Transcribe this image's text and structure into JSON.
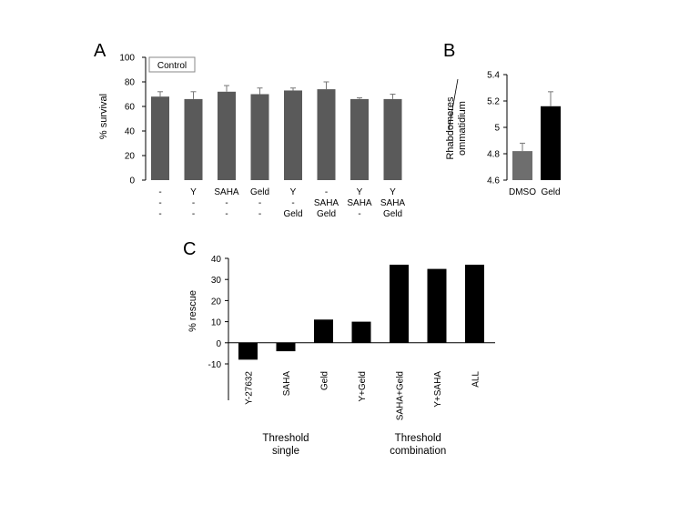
{
  "chart_data": [
    {
      "panel": "A",
      "type": "bar",
      "ylabel": "% survival",
      "ylim": [
        0,
        100
      ],
      "yticks": [
        0,
        20,
        40,
        60,
        80,
        100
      ],
      "legend_box": "Control",
      "label_rows": [
        [
          "-",
          "Y",
          "SAHA",
          "Geld",
          "Y",
          "-",
          "Y",
          "Y"
        ],
        [
          "-",
          "-",
          "-",
          "-",
          "-",
          "SAHA",
          "SAHA",
          "SAHA"
        ],
        [
          "-",
          "-",
          "-",
          "-",
          "Geld",
          "Geld",
          "-",
          "Geld"
        ]
      ],
      "values": [
        68,
        66,
        72,
        70,
        73,
        74,
        66,
        66
      ],
      "errors": [
        4,
        6,
        5,
        5,
        2,
        6,
        1,
        4
      ],
      "bar_color": "#5a5a5a"
    },
    {
      "panel": "B",
      "type": "bar",
      "ylabel_lines": [
        "Rhabdomeres",
        "ommatidium"
      ],
      "ylim": [
        4.6,
        5.4
      ],
      "yticks": [
        "4.6",
        "4.8",
        "5",
        "5.2",
        "5.4"
      ],
      "categories": [
        "DMSO",
        "Geld"
      ],
      "values": [
        4.82,
        5.16
      ],
      "errors": [
        0.06,
        0.11
      ],
      "bar_colors": [
        "#6e6e6e",
        "#000000"
      ]
    },
    {
      "panel": "C",
      "type": "bar",
      "ylabel": "% rescue",
      "ylim": [
        -10,
        40
      ],
      "yticks": [
        -10,
        0,
        10,
        20,
        30,
        40
      ],
      "categories": [
        "Y-27632",
        "SAHA",
        "Geld",
        "Y+Geld",
        "SAHA+Geld",
        "Y+SAHA",
        "ALL"
      ],
      "values": [
        -8,
        -4,
        11,
        10,
        37,
        35,
        37
      ],
      "group_labels": [
        {
          "lines": [
            "Threshold",
            "single"
          ],
          "span": [
            0,
            2
          ]
        },
        {
          "lines": [
            "Threshold",
            "combination"
          ],
          "span": [
            3,
            6
          ]
        }
      ],
      "bar_color": "#000000"
    }
  ],
  "panel_letters": [
    "A",
    "B",
    "C"
  ]
}
